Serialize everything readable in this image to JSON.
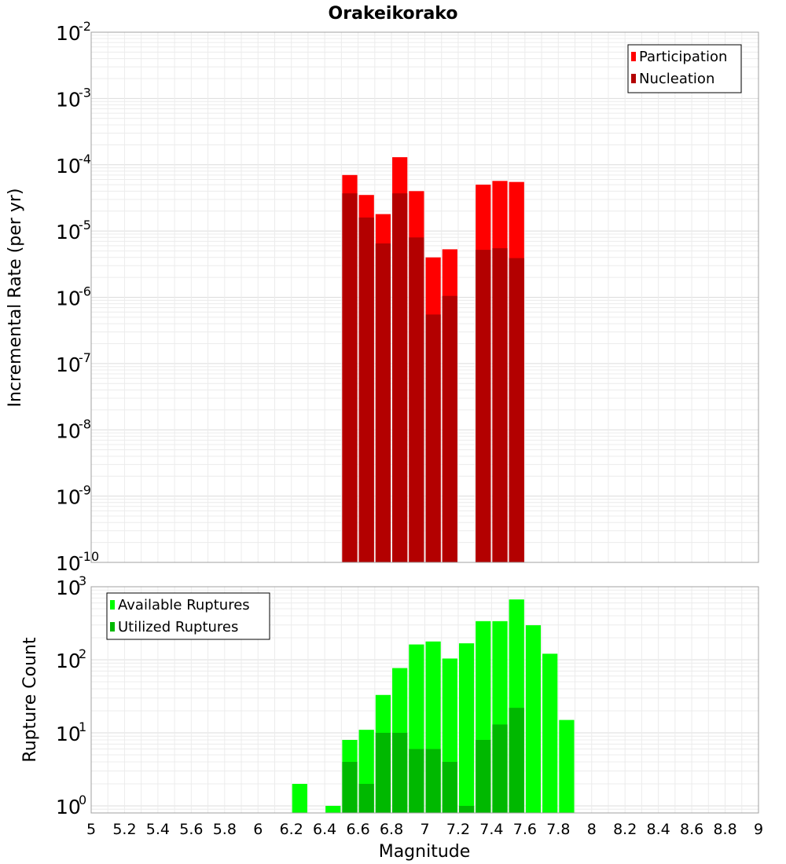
{
  "chart_data": {
    "title": "Orakeikorako",
    "xlabel": "Magnitude",
    "xlim": [
      5,
      9
    ],
    "xticks": [
      "5",
      "5.2",
      "5.4",
      "5.6",
      "5.8",
      "6",
      "6.2",
      "6.4",
      "6.6",
      "6.8",
      "7",
      "7.2",
      "7.4",
      "7.6",
      "7.8",
      "8",
      "8.2",
      "8.4",
      "8.6",
      "8.8",
      "9"
    ],
    "bin_width": 0.1,
    "panels": [
      {
        "type": "bar",
        "scale": "log",
        "ylabel": "Incremental Rate (per yr)",
        "ylim": [
          1e-10,
          0.01
        ],
        "ytick_exponents": [
          "-10",
          "-9",
          "-8",
          "-7",
          "-6",
          "-5",
          "-4",
          "-3",
          "-2"
        ],
        "grid": true,
        "legend_position": "top-right",
        "x": [
          6.55,
          6.65,
          6.75,
          6.85,
          6.95,
          7.05,
          7.15,
          7.35,
          7.45,
          7.55
        ],
        "series": [
          {
            "name": "Participation",
            "color": "#ff0000",
            "values": [
              7e-05,
              3.5e-05,
              1.8e-05,
              0.00013,
              4e-05,
              4e-06,
              5.3e-06,
              5e-05,
              5.7e-05,
              5.5e-05
            ]
          },
          {
            "name": "Nucleation",
            "color": "#b30000",
            "values": [
              3.7e-05,
              1.6e-05,
              6.5e-06,
              3.7e-05,
              8e-06,
              5.5e-07,
              1.05e-06,
              5.2e-06,
              5.5e-06,
              3.9e-06
            ]
          }
        ]
      },
      {
        "type": "bar",
        "scale": "log",
        "ylabel": "Rupture Count",
        "ylim": [
          0.8,
          1000
        ],
        "ytick_exponents": [
          "0",
          "1",
          "2",
          "3"
        ],
        "grid": true,
        "legend_position": "top-left",
        "x": [
          6.25,
          6.45,
          6.55,
          6.65,
          6.75,
          6.85,
          6.95,
          7.05,
          7.15,
          7.25,
          7.35,
          7.45,
          7.55,
          7.65,
          7.75,
          7.85
        ],
        "series": [
          {
            "name": "Available Ruptures",
            "color": "#00ff00",
            "values": [
              2,
              1,
              8,
              11,
              33,
              77,
              162,
              178,
              104,
              168,
              338,
              338,
              670,
              297,
              121,
              15
            ]
          },
          {
            "name": "Utilized Ruptures",
            "color": "#00b800",
            "values": [
              0,
              0,
              4,
              2,
              10,
              10,
              6,
              6,
              4,
              1,
              8,
              13,
              22,
              0,
              0,
              0
            ]
          }
        ]
      }
    ]
  }
}
